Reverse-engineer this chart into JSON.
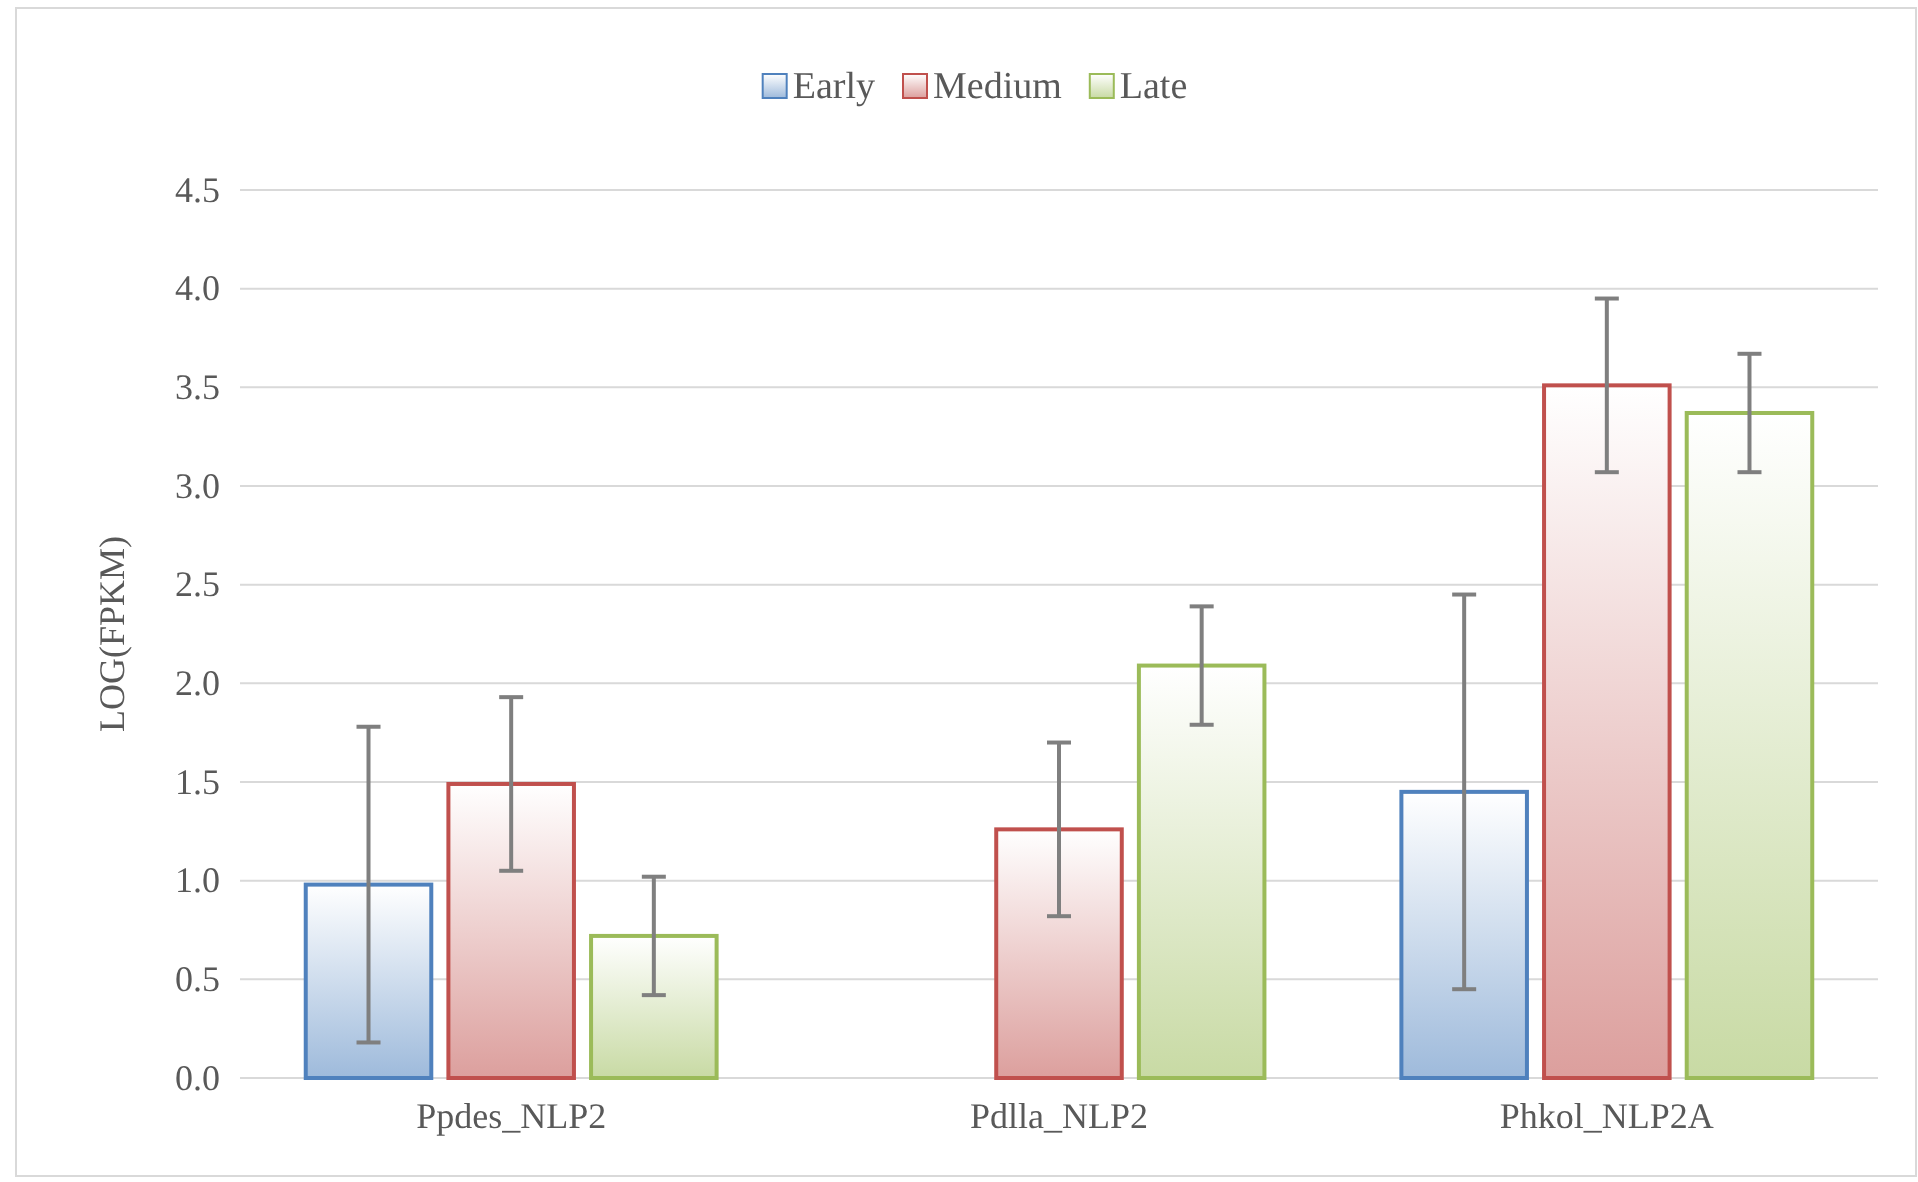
{
  "chart_data": {
    "type": "bar",
    "ylabel": "LOG(FPKM)",
    "categories": [
      "Ppdes_NLP2",
      "Pdlla_NLP2",
      "Phkol_NLP2A"
    ],
    "series": [
      {
        "name": "Early",
        "color": "#4f81bd",
        "values": [
          0.98,
          0,
          1.45
        ],
        "errors": [
          0.8,
          null,
          1.0
        ]
      },
      {
        "name": "Medium",
        "color": "#c0504d",
        "values": [
          1.49,
          1.26,
          3.51
        ],
        "errors": [
          0.44,
          0.44,
          0.44
        ]
      },
      {
        "name": "Late",
        "color": "#9bbb59",
        "values": [
          0.72,
          2.09,
          3.37
        ],
        "errors": [
          0.3,
          0.3,
          0.3
        ]
      }
    ],
    "ylim": [
      0,
      4.5
    ],
    "yticks": [
      {
        "value": 0,
        "label": "0.0"
      },
      {
        "value": 0.5,
        "label": "0.5"
      },
      {
        "value": 1,
        "label": "1.0"
      },
      {
        "value": 1.5,
        "label": "1.5"
      },
      {
        "value": 2,
        "label": "2.0"
      },
      {
        "value": 2.5,
        "label": "2.5"
      },
      {
        "value": 3,
        "label": "3.0"
      },
      {
        "value": 3.5,
        "label": "3.5"
      },
      {
        "value": 4,
        "label": "4.0"
      },
      {
        "value": 4.5,
        "label": "4.5"
      }
    ],
    "grid": "y",
    "legend": "top"
  }
}
